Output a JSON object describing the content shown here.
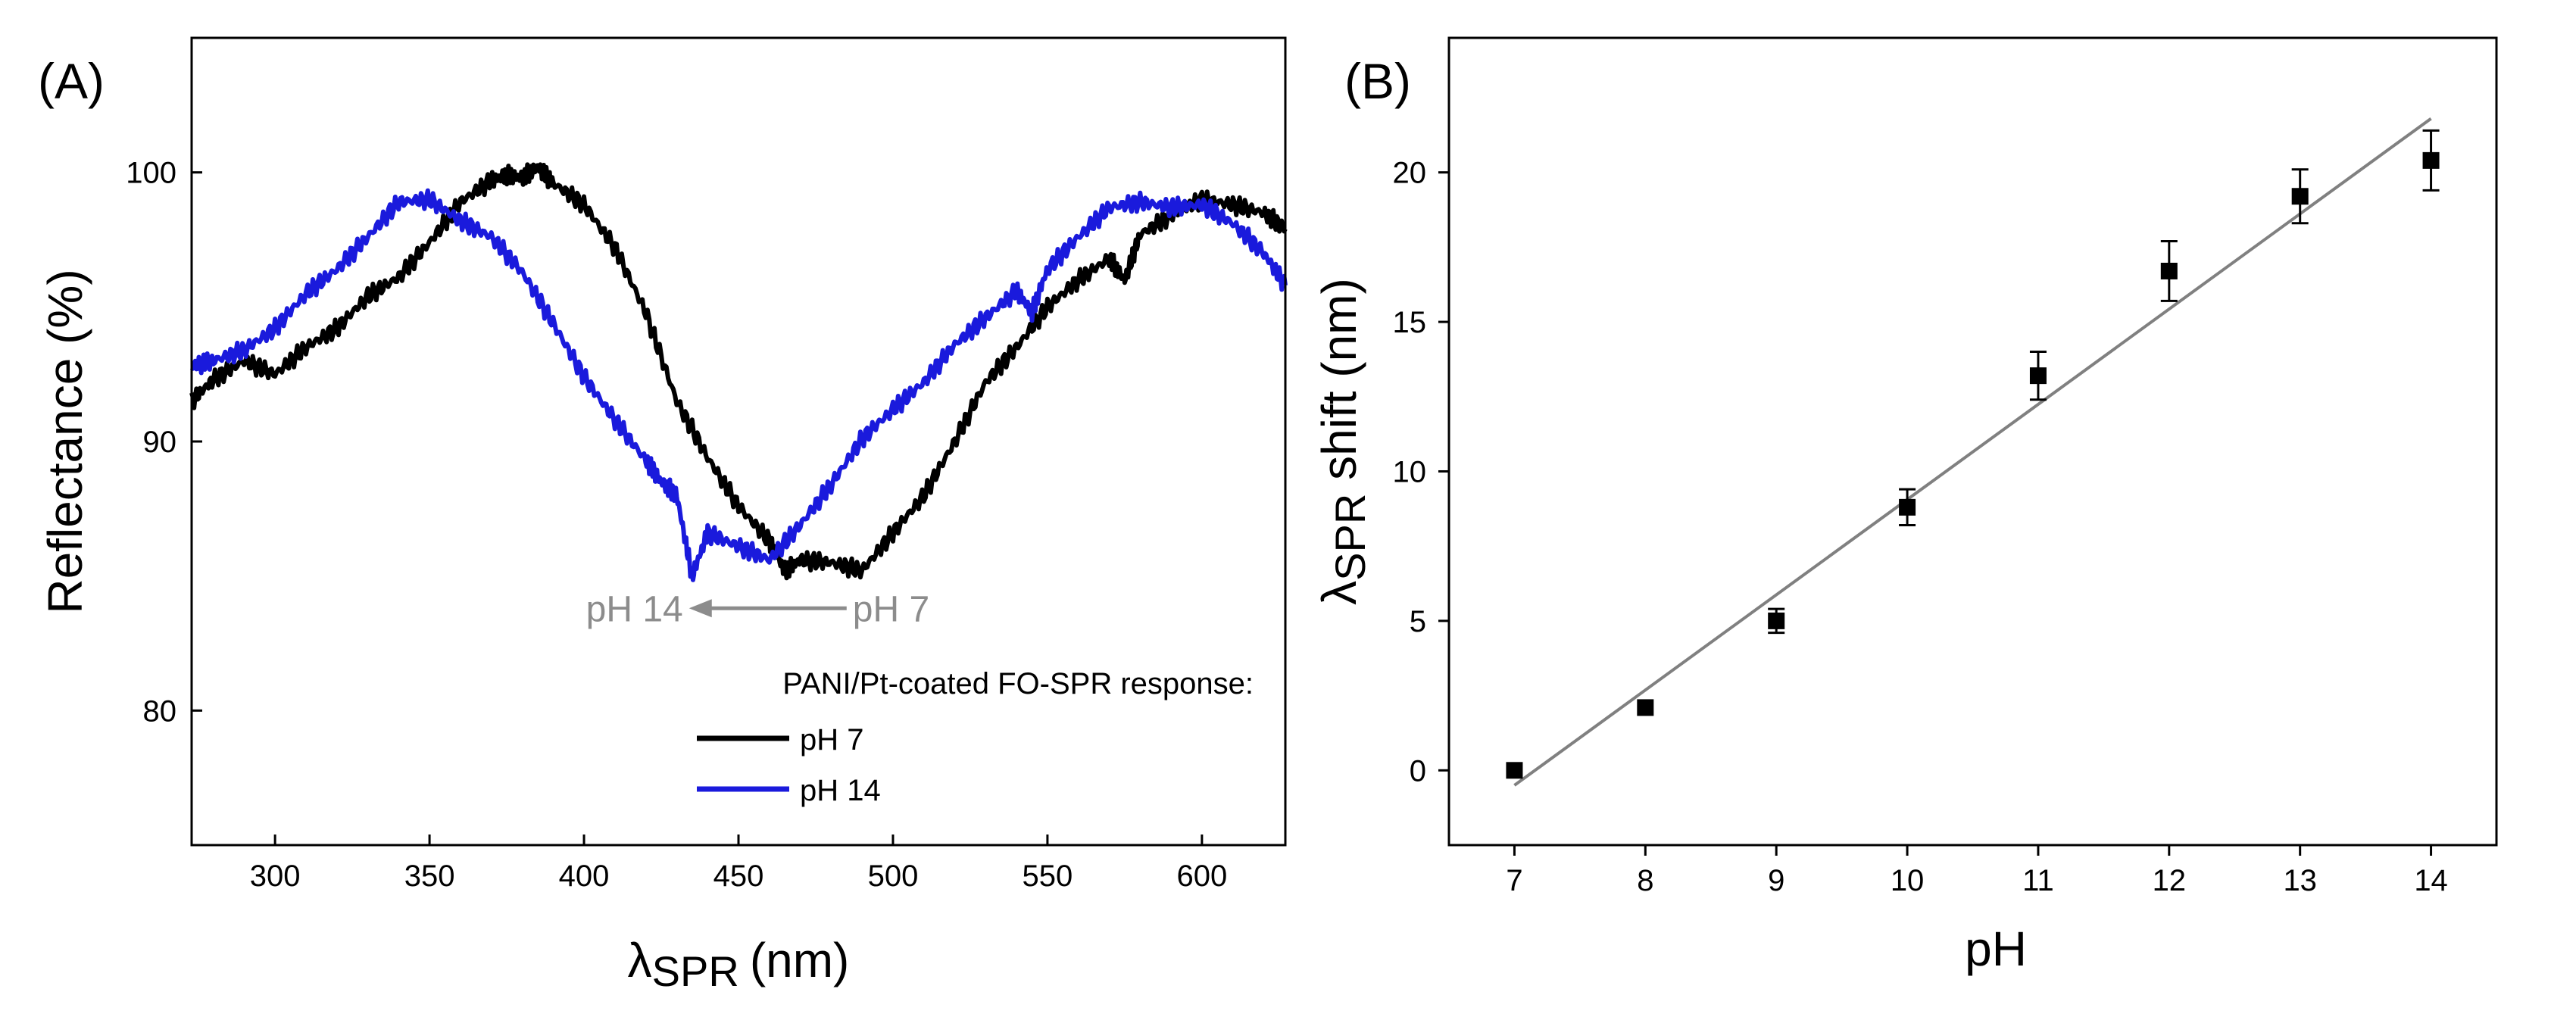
{
  "chart_data": [
    {
      "panel_label": "(A)",
      "type": "line",
      "xlabel_symbol": "λ",
      "xlabel_sub": "SPR",
      "xlabel_unit": "(nm)",
      "ylabel": "Reflectance (%)",
      "xlim": [
        273,
        627
      ],
      "ylim": [
        75,
        105
      ],
      "x_ticks": [
        300,
        350,
        400,
        450,
        500,
        550,
        600
      ],
      "y_ticks": [
        80,
        90,
        100
      ],
      "legend_title": "PANI/Pt-coated FO-SPR response:",
      "legend_placement": "bottom-right",
      "arrow_annotation": {
        "from_label": "pH 7",
        "to_label": "pH 14",
        "color": "#8c8c8c",
        "from_x": 485,
        "to_x": 434,
        "y": 83.8
      },
      "series": [
        {
          "name": "pH 7",
          "color": "#000000",
          "x": [
            273,
            280,
            290,
            300,
            310,
            320,
            330,
            340,
            350,
            360,
            370,
            375,
            380,
            385,
            390,
            400,
            410,
            420,
            430,
            440,
            450,
            460,
            465,
            470,
            480,
            490,
            500,
            510,
            520,
            530,
            540,
            550,
            560,
            570,
            575,
            580,
            590,
            600,
            610,
            620,
            627
          ],
          "y": [
            91.5,
            92.3,
            93.0,
            92.5,
            93.5,
            94.2,
            95.4,
            96.1,
            97.4,
            98.9,
            99.7,
            99.9,
            99.8,
            100.2,
            99.6,
            98.8,
            97.2,
            94.8,
            91.5,
            89.4,
            87.6,
            86.3,
            85.2,
            85.6,
            85.5,
            85.2,
            86.6,
            88.0,
            90.0,
            92.2,
            93.5,
            95.0,
            96.0,
            96.8,
            96.0,
            97.7,
            98.4,
            99.0,
            98.8,
            98.5,
            97.9
          ]
        },
        {
          "name": "pH 14",
          "color": "#1a1adc",
          "x": [
            273,
            280,
            290,
            300,
            310,
            320,
            330,
            340,
            350,
            360,
            370,
            380,
            390,
            400,
            410,
            420,
            425,
            430,
            435,
            440,
            450,
            460,
            470,
            480,
            490,
            500,
            510,
            520,
            530,
            540,
            545,
            550,
            560,
            570,
            580,
            590,
            600,
            610,
            620,
            627
          ],
          "y": [
            92.8,
            93.0,
            93.4,
            94.2,
            95.5,
            96.4,
            97.6,
            98.9,
            99.0,
            98.2,
            97.6,
            96.3,
            94.4,
            92.4,
            90.8,
            89.3,
            88.5,
            88.0,
            85.0,
            86.6,
            86.1,
            85.6,
            86.9,
            88.4,
            90.1,
            91.2,
            92.2,
            93.6,
            94.6,
            95.6,
            94.8,
            96.4,
            97.6,
            98.7,
            98.9,
            98.7,
            98.8,
            98.1,
            97.0,
            95.8
          ]
        }
      ]
    },
    {
      "panel_label": "(B)",
      "type": "scatter",
      "xlabel": "pH",
      "ylabel_symbol": "λ",
      "ylabel_sub": "SPR",
      "ylabel_rest": " shift (nm)",
      "xlim": [
        6.5,
        14.5
      ],
      "ylim": [
        -2.5,
        24.5
      ],
      "x_ticks": [
        7,
        8,
        9,
        10,
        11,
        12,
        13,
        14
      ],
      "y_ticks": [
        0,
        5,
        10,
        15,
        20
      ],
      "grid": false,
      "points": {
        "x": [
          7,
          8,
          9,
          10,
          11,
          12,
          13,
          14
        ],
        "y": [
          0.0,
          2.1,
          5.0,
          8.8,
          13.2,
          16.7,
          19.2,
          20.4
        ],
        "error": [
          0.2,
          0.2,
          0.4,
          0.6,
          0.8,
          1.0,
          0.9,
          1.0
        ],
        "color": "#000000"
      },
      "fit_line": {
        "x": [
          7,
          14
        ],
        "y": [
          -0.5,
          21.8
        ],
        "color": "#808080"
      }
    }
  ]
}
